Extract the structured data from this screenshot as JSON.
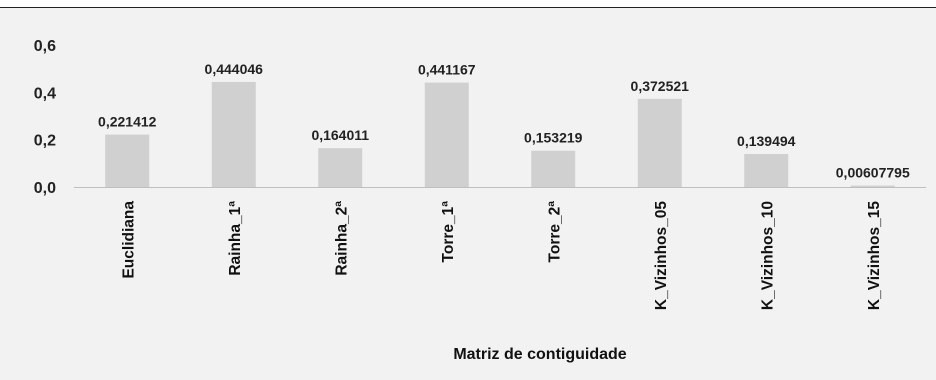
{
  "chart_data": {
    "type": "bar",
    "title": "",
    "xlabel": "Matriz de contiguidade",
    "ylabel": "",
    "ylim": [
      0,
      0.6
    ],
    "yticks": [
      "0,0",
      "0,2",
      "0,4",
      "0,6"
    ],
    "ytick_values": [
      0,
      0.2,
      0.4,
      0.6
    ],
    "grid": false,
    "legend": "none",
    "bar_color": "#d0d0d0",
    "categories": [
      "Euclidiana",
      "Rainha_1ª",
      "Rainha_2ª",
      "Torre_1ª",
      "Torre_2ª",
      "K_Vizinhos_05",
      "K_Vizinhos_10",
      "K_Vizinhos_15"
    ],
    "values": [
      0.221412,
      0.444046,
      0.164011,
      0.441167,
      0.153219,
      0.372521,
      0.139494,
      0.00607795
    ],
    "value_labels": [
      "0,221412",
      "0,444046",
      "0,164011",
      "0,441167",
      "0,153219",
      "0,372521",
      "0,139494",
      "0,00607795"
    ]
  }
}
